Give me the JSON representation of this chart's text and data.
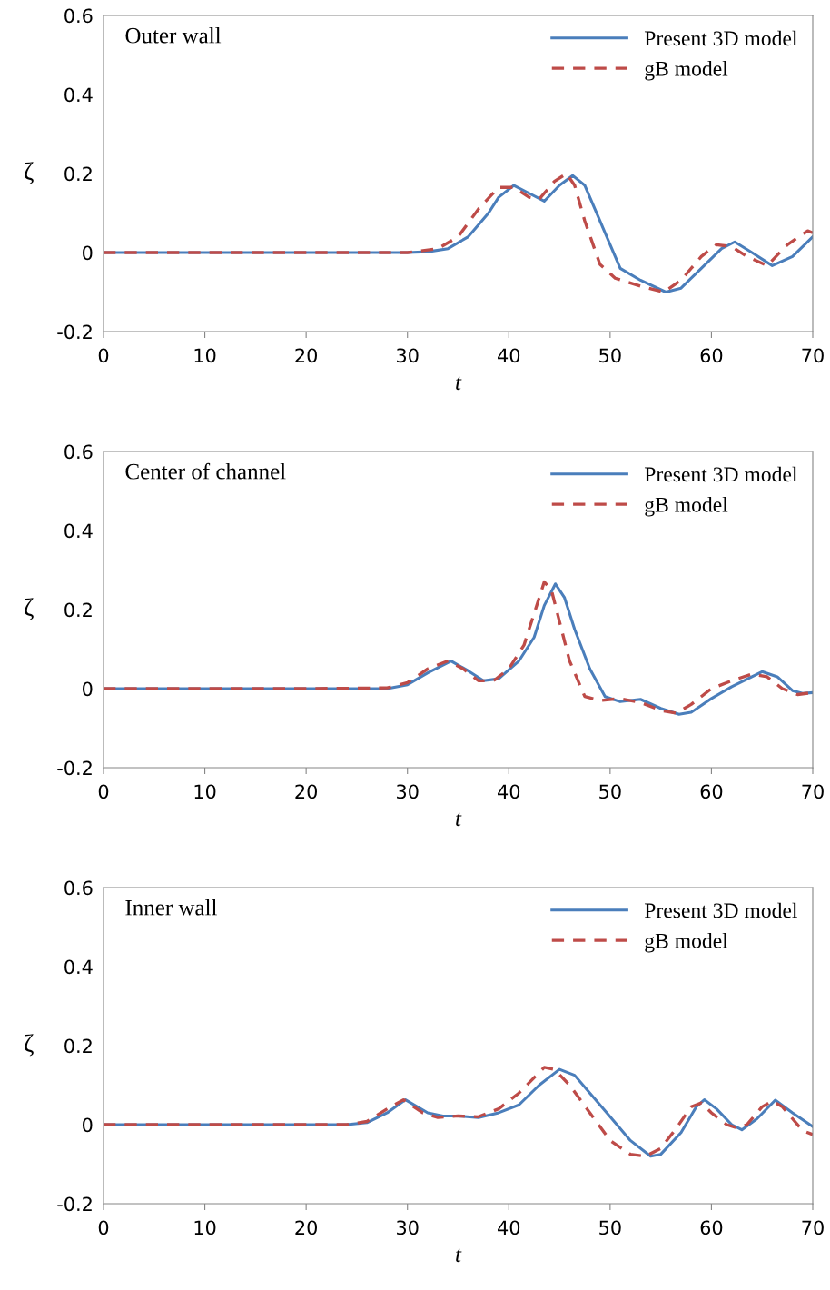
{
  "chart_data": [
    {
      "type": "line",
      "xlabel": "t",
      "ylabel": "ζ",
      "annotations": [
        "Outer wall"
      ],
      "xlim": [
        0,
        70
      ],
      "ylim": [
        -0.2,
        0.6
      ],
      "xticks": [
        0,
        10,
        20,
        30,
        40,
        50,
        60,
        70
      ],
      "yticks": [
        -0.2,
        0,
        0.2,
        0.4,
        0.6
      ],
      "grid": false,
      "legend": "top right",
      "series": [
        {
          "name": "Present 3D model",
          "color": "#4a7ebb",
          "line_style": "solid",
          "x": [
            0,
            10,
            20,
            30,
            32,
            34,
            36,
            38,
            39,
            40.5,
            42,
            43.5,
            45,
            46.3,
            47.5,
            49,
            51,
            53,
            55.5,
            57,
            59,
            61,
            62.3,
            64,
            66,
            68,
            70
          ],
          "values": [
            0,
            0,
            0,
            0,
            0.002,
            0.01,
            0.04,
            0.1,
            0.14,
            0.17,
            0.15,
            0.13,
            0.17,
            0.195,
            0.17,
            0.08,
            -0.04,
            -0.07,
            -0.1,
            -0.09,
            -0.04,
            0.01,
            0.027,
            0.0,
            -0.033,
            -0.01,
            0.04
          ]
        },
        {
          "name": "gB model",
          "color": "#be4b48",
          "line_style": "dashed",
          "x": [
            0,
            10,
            20,
            30,
            33,
            35,
            37,
            39,
            40.5,
            42,
            43,
            44.5,
            45.7,
            46.5,
            47.5,
            49,
            50.5,
            53,
            55.3,
            57,
            59,
            60.5,
            62,
            63.5,
            65.5,
            67.5,
            69.5,
            70
          ],
          "values": [
            0,
            0,
            0,
            0,
            0.01,
            0.04,
            0.11,
            0.165,
            0.165,
            0.14,
            0.135,
            0.18,
            0.2,
            0.17,
            0.08,
            -0.03,
            -0.065,
            -0.085,
            -0.1,
            -0.07,
            -0.01,
            0.02,
            0.015,
            -0.01,
            -0.033,
            0.02,
            0.055,
            0.05
          ]
        }
      ]
    },
    {
      "type": "line",
      "xlabel": "t",
      "ylabel": "ζ",
      "annotations": [
        "Center of channel"
      ],
      "xlim": [
        0,
        70
      ],
      "ylim": [
        -0.2,
        0.6
      ],
      "xticks": [
        0,
        10,
        20,
        30,
        40,
        50,
        60,
        70
      ],
      "yticks": [
        -0.2,
        0,
        0.2,
        0.4,
        0.6
      ],
      "grid": false,
      "legend": "top right",
      "series": [
        {
          "name": "Present 3D model",
          "color": "#4a7ebb",
          "line_style": "solid",
          "x": [
            0,
            10,
            20,
            28,
            30,
            32,
            34.3,
            36,
            37.5,
            39,
            41,
            42.5,
            43.5,
            44.6,
            45.5,
            46.5,
            48,
            49.5,
            51,
            53,
            55,
            56.8,
            58,
            60,
            62,
            65,
            66.5,
            68,
            69,
            70
          ],
          "values": [
            0,
            0,
            0,
            0,
            0.01,
            0.04,
            0.07,
            0.045,
            0.02,
            0.025,
            0.07,
            0.13,
            0.21,
            0.265,
            0.23,
            0.15,
            0.05,
            -0.02,
            -0.033,
            -0.027,
            -0.05,
            -0.065,
            -0.06,
            -0.025,
            0.005,
            0.043,
            0.03,
            -0.005,
            -0.012,
            -0.01
          ]
        },
        {
          "name": "gB model",
          "color": "#be4b48",
          "line_style": "dashed",
          "x": [
            0,
            10,
            20,
            28,
            30,
            32,
            34,
            35.5,
            37,
            38.5,
            40,
            41.5,
            42.5,
            43.5,
            44.2,
            45,
            46,
            47.5,
            49,
            51,
            53,
            55,
            56.5,
            58,
            60,
            62,
            64,
            65.5,
            67,
            68.5,
            70
          ],
          "values": [
            0,
            0,
            0,
            0.002,
            0.015,
            0.05,
            0.07,
            0.05,
            0.02,
            0.02,
            0.05,
            0.11,
            0.19,
            0.27,
            0.25,
            0.17,
            0.07,
            -0.02,
            -0.03,
            -0.025,
            -0.035,
            -0.055,
            -0.062,
            -0.04,
            0.0,
            0.02,
            0.037,
            0.03,
            0.0,
            -0.015,
            -0.01
          ]
        }
      ]
    },
    {
      "type": "line",
      "xlabel": "t",
      "ylabel": "ζ",
      "annotations": [
        "Inner wall"
      ],
      "xlim": [
        0,
        70
      ],
      "ylim": [
        -0.2,
        0.6
      ],
      "xticks": [
        0,
        10,
        20,
        30,
        40,
        50,
        60,
        70
      ],
      "yticks": [
        -0.2,
        0,
        0.2,
        0.4,
        0.6
      ],
      "grid": false,
      "legend": "top right",
      "series": [
        {
          "name": "Present 3D model",
          "color": "#4a7ebb",
          "line_style": "solid",
          "x": [
            0,
            10,
            20,
            24,
            26,
            28,
            29.8,
            32,
            33.5,
            35,
            37,
            39,
            41,
            43,
            45,
            46.5,
            48,
            50,
            52,
            54,
            55,
            57,
            58.5,
            59.3,
            60.5,
            62,
            63,
            64.5,
            66.3,
            68,
            70
          ],
          "values": [
            0,
            0,
            0,
            0,
            0.005,
            0.03,
            0.063,
            0.03,
            0.022,
            0.022,
            0.018,
            0.03,
            0.05,
            0.1,
            0.14,
            0.125,
            0.08,
            0.02,
            -0.04,
            -0.08,
            -0.075,
            -0.02,
            0.045,
            0.063,
            0.04,
            0.0,
            -0.013,
            0.015,
            0.062,
            0.03,
            -0.005
          ]
        },
        {
          "name": "gB model",
          "color": "#be4b48",
          "line_style": "dashed",
          "x": [
            0,
            10,
            20,
            24,
            26,
            28,
            29.6,
            31.5,
            33,
            35,
            37,
            39,
            41,
            43.5,
            44.5,
            46,
            48,
            50,
            52,
            53.5,
            55,
            56.5,
            58,
            59,
            60,
            61.5,
            62.5,
            63.5,
            65,
            66,
            67,
            69,
            70
          ],
          "values": [
            0,
            0,
            0,
            0,
            0.008,
            0.04,
            0.063,
            0.03,
            0.018,
            0.022,
            0.02,
            0.04,
            0.08,
            0.145,
            0.14,
            0.1,
            0.03,
            -0.04,
            -0.075,
            -0.08,
            -0.06,
            -0.01,
            0.045,
            0.055,
            0.03,
            0.0,
            -0.008,
            0.0,
            0.045,
            0.06,
            0.045,
            -0.015,
            -0.025
          ]
        }
      ]
    }
  ]
}
